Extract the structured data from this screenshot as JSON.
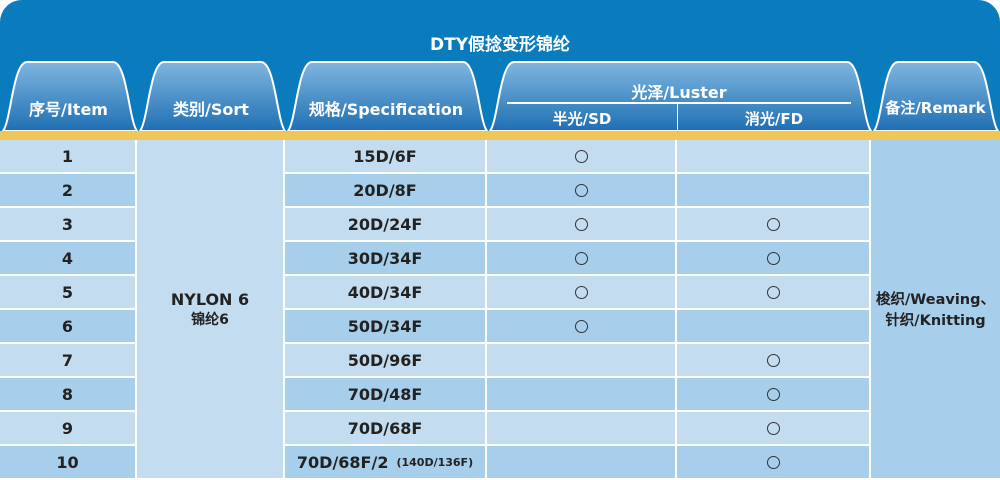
{
  "title": "DTY假捻变形锦纶",
  "headers": {
    "item": "序号/Item",
    "sort": "类别/Sort",
    "spec": "规格/Specification",
    "luster": "光泽/Luster",
    "sd": "半光/SD",
    "fd": "消光/FD",
    "remark": "备注/Remark"
  },
  "sort_value": {
    "line1": "NYLON 6",
    "line2": "锦纶6"
  },
  "remark_value": {
    "line1": "梭织/Weaving、",
    "line2": "针织/Knitting"
  },
  "rows": [
    {
      "item": "1",
      "spec": "15D/6F",
      "spec_note": "",
      "sd": true,
      "fd": false
    },
    {
      "item": "2",
      "spec": "20D/8F",
      "spec_note": "",
      "sd": true,
      "fd": false
    },
    {
      "item": "3",
      "spec": "20D/24F",
      "spec_note": "",
      "sd": true,
      "fd": true
    },
    {
      "item": "4",
      "spec": "30D/34F",
      "spec_note": "",
      "sd": true,
      "fd": true
    },
    {
      "item": "5",
      "spec": "40D/34F",
      "spec_note": "",
      "sd": true,
      "fd": true
    },
    {
      "item": "6",
      "spec": "50D/34F",
      "spec_note": "",
      "sd": true,
      "fd": false
    },
    {
      "item": "7",
      "spec": "50D/96F",
      "spec_note": "",
      "sd": false,
      "fd": true
    },
    {
      "item": "8",
      "spec": "70D/48F",
      "spec_note": "",
      "sd": false,
      "fd": true
    },
    {
      "item": "9",
      "spec": "70D/68F",
      "spec_note": "",
      "sd": false,
      "fd": true
    },
    {
      "item": "10",
      "spec": "70D/68F/2",
      "spec_note": "(140D/136F)",
      "sd": false,
      "fd": true
    }
  ],
  "colors": {
    "header_blue": "#0a7bbd",
    "stripe": "#f1c659",
    "row_light": "#c4dcf0",
    "row_dark": "#a7ceeb"
  }
}
